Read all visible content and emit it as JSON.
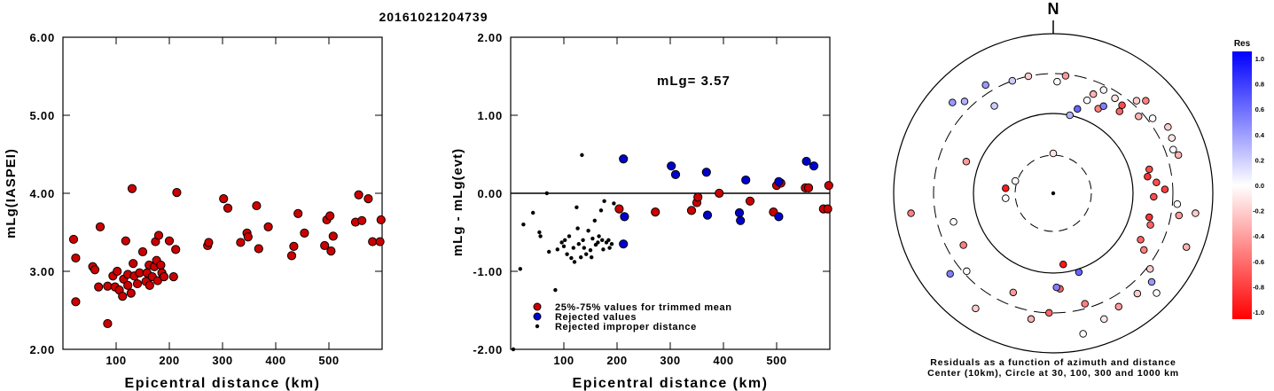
{
  "page": {
    "title": "20161021204739"
  },
  "chart_data": [
    {
      "type": "scatter",
      "xlabel": "Epicentral distance (km)",
      "ylabel": "mLg(IASPEI)",
      "xlim": [
        0,
        600
      ],
      "ylim": [
        2.0,
        6.0
      ],
      "xticks": [
        100,
        200,
        300,
        400,
        500
      ],
      "yticks": [
        "2.00",
        "3.00",
        "4.00",
        "5.00",
        "6.00"
      ],
      "series": [
        {
          "color": "#cc0000",
          "points": [
            [
              20,
              3.41
            ],
            [
              24,
              3.17
            ],
            [
              24,
              2.61
            ],
            [
              56,
              3.06
            ],
            [
              60,
              3.02
            ],
            [
              67,
              2.8
            ],
            [
              70,
              3.57
            ],
            [
              84,
              2.81
            ],
            [
              84,
              2.33
            ],
            [
              94,
              2.94
            ],
            [
              98,
              2.8
            ],
            [
              102,
              3.0
            ],
            [
              106,
              2.76
            ],
            [
              112,
              2.68
            ],
            [
              114,
              2.9
            ],
            [
              118,
              3.39
            ],
            [
              122,
              2.82
            ],
            [
              122,
              2.96
            ],
            [
              128,
              2.72
            ],
            [
              130,
              4.06
            ],
            [
              132,
              3.1
            ],
            [
              134,
              2.94
            ],
            [
              140,
              2.84
            ],
            [
              144,
              2.98
            ],
            [
              150,
              3.25
            ],
            [
              156,
              2.87
            ],
            [
              158,
              2.98
            ],
            [
              162,
              3.08
            ],
            [
              163,
              2.82
            ],
            [
              168,
              2.93
            ],
            [
              172,
              3.06
            ],
            [
              174,
              3.38
            ],
            [
              176,
              3.14
            ],
            [
              178,
              2.88
            ],
            [
              180,
              3.46
            ],
            [
              184,
              3.08
            ],
            [
              186,
              2.98
            ],
            [
              190,
              2.93
            ],
            [
              200,
              3.39
            ],
            [
              208,
              2.93
            ],
            [
              212,
              3.28
            ],
            [
              214,
              4.01
            ],
            [
              272,
              3.33
            ],
            [
              274,
              3.37
            ],
            [
              302,
              3.93
            ],
            [
              310,
              3.81
            ],
            [
              334,
              3.37
            ],
            [
              346,
              3.49
            ],
            [
              348,
              3.44
            ],
            [
              364,
              3.84
            ],
            [
              368,
              3.29
            ],
            [
              386,
              3.57
            ],
            [
              430,
              3.2
            ],
            [
              434,
              3.32
            ],
            [
              442,
              3.74
            ],
            [
              454,
              3.49
            ],
            [
              492,
              3.33
            ],
            [
              496,
              3.66
            ],
            [
              502,
              3.71
            ],
            [
              504,
              3.26
            ],
            [
              508,
              3.45
            ],
            [
              550,
              3.63
            ],
            [
              556,
              3.98
            ],
            [
              562,
              3.65
            ],
            [
              574,
              3.93
            ],
            [
              582,
              3.38
            ],
            [
              596,
              3.38
            ],
            [
              598,
              3.66
            ]
          ]
        }
      ]
    },
    {
      "type": "scatter",
      "xlabel": "Epicentral distance (km)",
      "ylabel": "mLg - mLg(evt)",
      "xlim": [
        0,
        600
      ],
      "ylim": [
        -2.0,
        2.0
      ],
      "xticks": [
        100,
        200,
        300,
        400,
        500
      ],
      "yticks": [
        "-2.00",
        "-1.00",
        "0.00",
        "1.00",
        "2.00"
      ],
      "annotation": "mLg= 3.57",
      "legend": [
        {
          "label": "25%-75% values for trimmed mean",
          "color": "#cc0000",
          "marker": "circle"
        },
        {
          "label": "Rejected values",
          "color": "#0000cc",
          "marker": "circle"
        },
        {
          "label": "Rejected improper distance",
          "color": "#000000",
          "marker": "dot"
        }
      ],
      "series": [
        {
          "name": "25%-75% values for trimmed mean",
          "color": "#cc0000",
          "points": [
            [
              204,
              -0.2
            ],
            [
              272,
              -0.24
            ],
            [
              340,
              -0.22
            ],
            [
              350,
              -0.12
            ],
            [
              352,
              -0.05
            ],
            [
              392,
              0.0
            ],
            [
              450,
              -0.1
            ],
            [
              494,
              -0.24
            ],
            [
              500,
              0.1
            ],
            [
              508,
              0.13
            ],
            [
              554,
              0.07
            ],
            [
              560,
              0.07
            ],
            [
              588,
              -0.2
            ],
            [
              596,
              -0.2
            ],
            [
              598,
              0.1
            ]
          ]
        },
        {
          "name": "Rejected values",
          "color": "#0000cc",
          "points": [
            [
              212,
              0.44
            ],
            [
              214,
              -0.3
            ],
            [
              212,
              -0.65
            ],
            [
              302,
              0.35
            ],
            [
              310,
              0.24
            ],
            [
              368,
              0.27
            ],
            [
              370,
              -0.28
            ],
            [
              430,
              -0.25
            ],
            [
              432,
              -0.35
            ],
            [
              442,
              0.17
            ],
            [
              504,
              0.15
            ],
            [
              504,
              -0.3
            ],
            [
              556,
              0.41
            ],
            [
              570,
              0.35
            ]
          ]
        },
        {
          "name": "Rejected improper distance",
          "color": "#000000",
          "points": [
            [
              5,
              -2.0
            ],
            [
              18,
              -0.97
            ],
            [
              24,
              -0.4
            ],
            [
              42,
              -0.25
            ],
            [
              54,
              -0.5
            ],
            [
              56,
              -0.55
            ],
            [
              68,
              0.0
            ],
            [
              72,
              -0.75
            ],
            [
              84,
              -1.24
            ],
            [
              88,
              -0.72
            ],
            [
              96,
              -0.63
            ],
            [
              100,
              -0.68
            ],
            [
              102,
              -0.6
            ],
            [
              106,
              -0.78
            ],
            [
              110,
              -0.55
            ],
            [
              114,
              -0.83
            ],
            [
              118,
              -0.7
            ],
            [
              120,
              -0.88
            ],
            [
              124,
              -0.18
            ],
            [
              126,
              -0.45
            ],
            [
              128,
              -0.65
            ],
            [
              132,
              -0.82
            ],
            [
              134,
              0.49
            ],
            [
              136,
              -0.6
            ],
            [
              138,
              -0.7
            ],
            [
              142,
              -0.78
            ],
            [
              146,
              -0.48
            ],
            [
              150,
              -0.73
            ],
            [
              152,
              -0.82
            ],
            [
              154,
              -0.58
            ],
            [
              158,
              -0.35
            ],
            [
              160,
              -0.66
            ],
            [
              164,
              -0.63
            ],
            [
              166,
              -0.55
            ],
            [
              170,
              -0.22
            ],
            [
              172,
              -0.6
            ],
            [
              174,
              -0.72
            ],
            [
              176,
              -0.1
            ],
            [
              180,
              -0.63
            ],
            [
              184,
              -0.6
            ],
            [
              186,
              -0.7
            ],
            [
              190,
              -0.65
            ],
            [
              194,
              -0.13
            ]
          ]
        }
      ]
    },
    {
      "type": "polar",
      "north_label": "N",
      "caption": [
        "Residuals as a function of azimuth and distance",
        "Center (10km), Circle at 30, 100, 300 and 1000 km"
      ],
      "rings_km": [
        30,
        100,
        300,
        1000
      ],
      "colorbar": {
        "title": "Res",
        "ticks": [
          "1.0",
          "0.8",
          "0.6",
          "0.4",
          "0.2",
          "0.0",
          "-0.2",
          "-0.4",
          "-0.6",
          "-0.8",
          "-1.0"
        ],
        "max_color": "#0000ff",
        "zero_color": "#ffffff",
        "min_color": "#ff0000"
      },
      "points": [
        [
          12,
          0.5,
          0.3
        ],
        [
          16,
          0.55,
          0.6
        ],
        [
          20,
          0.62,
          0.0
        ],
        [
          22,
          0.67,
          -0.3
        ],
        [
          28,
          0.6,
          -0.5
        ],
        [
          30,
          0.63,
          0.5
        ],
        [
          26,
          0.72,
          -0.05
        ],
        [
          33,
          0.71,
          -0.1
        ],
        [
          38,
          0.7,
          -0.7
        ],
        [
          39,
          0.66,
          -0.6
        ],
        [
          42,
          0.78,
          -0.2
        ],
        [
          45,
          0.82,
          -0.5
        ],
        [
          48,
          0.72,
          -0.3
        ],
        [
          53,
          0.78,
          0.0
        ],
        [
          60,
          0.83,
          -0.2
        ],
        [
          65,
          0.82,
          -0.1
        ],
        [
          70,
          0.8,
          0.0
        ],
        [
          73,
          0.82,
          -0.3
        ],
        [
          76,
          0.62,
          -0.7
        ],
        [
          80,
          0.6,
          -0.8
        ],
        [
          84,
          0.65,
          -0.7
        ],
        [
          88,
          0.7,
          -0.75
        ],
        [
          92,
          0.63,
          -0.7
        ],
        [
          95,
          0.78,
          0.0
        ],
        [
          98,
          0.9,
          -0.2
        ],
        [
          100,
          0.8,
          -0.4
        ],
        [
          104,
          0.62,
          -0.8
        ],
        [
          108,
          0.64,
          -0.6
        ],
        [
          112,
          0.9,
          -0.3
        ],
        [
          118,
          0.62,
          -0.6
        ],
        [
          122,
          0.67,
          -0.5
        ],
        [
          128,
          0.77,
          -0.2
        ],
        [
          132,
          0.83,
          0.4
        ],
        [
          134,
          0.9,
          0.0
        ],
        [
          140,
          0.82,
          -0.2
        ],
        [
          150,
          0.82,
          -0.4
        ],
        [
          158,
          0.85,
          -0.1
        ],
        [
          162,
          0.52,
          0.6
        ],
        [
          164,
          0.72,
          -0.5
        ],
        [
          168,
          0.9,
          0.0
        ],
        [
          172,
          0.45,
          -0.9
        ],
        [
          176,
          0.6,
          -0.6
        ],
        [
          178,
          0.59,
          0.5
        ],
        [
          182,
          0.75,
          -0.6
        ],
        [
          190,
          0.8,
          -0.3
        ],
        [
          202,
          0.67,
          -0.4
        ],
        [
          214,
          0.87,
          -0.2
        ],
        [
          228,
          0.73,
          0.0
        ],
        [
          232,
          0.82,
          0.5
        ],
        [
          240,
          0.65,
          -0.5
        ],
        [
          254,
          0.65,
          0.0
        ],
        [
          262,
          0.9,
          -0.5
        ],
        [
          264,
          0.3,
          0.0
        ],
        [
          276,
          0.3,
          -0.9
        ],
        [
          288,
          0.25,
          0.0
        ],
        [
          290,
          0.58,
          -0.4
        ],
        [
          312,
          0.85,
          0.4
        ],
        [
          316,
          0.8,
          0.3
        ],
        [
          326,
          0.66,
          0.2
        ],
        [
          328,
          0.8,
          0.4
        ],
        [
          340,
          0.75,
          0.2
        ],
        [
          348,
          0.75,
          -0.2
        ],
        [
          360,
          0.25,
          -0.1
        ],
        [
          362,
          0.7,
          0.0
        ],
        [
          6,
          0.74,
          -0.4
        ]
      ]
    }
  ]
}
